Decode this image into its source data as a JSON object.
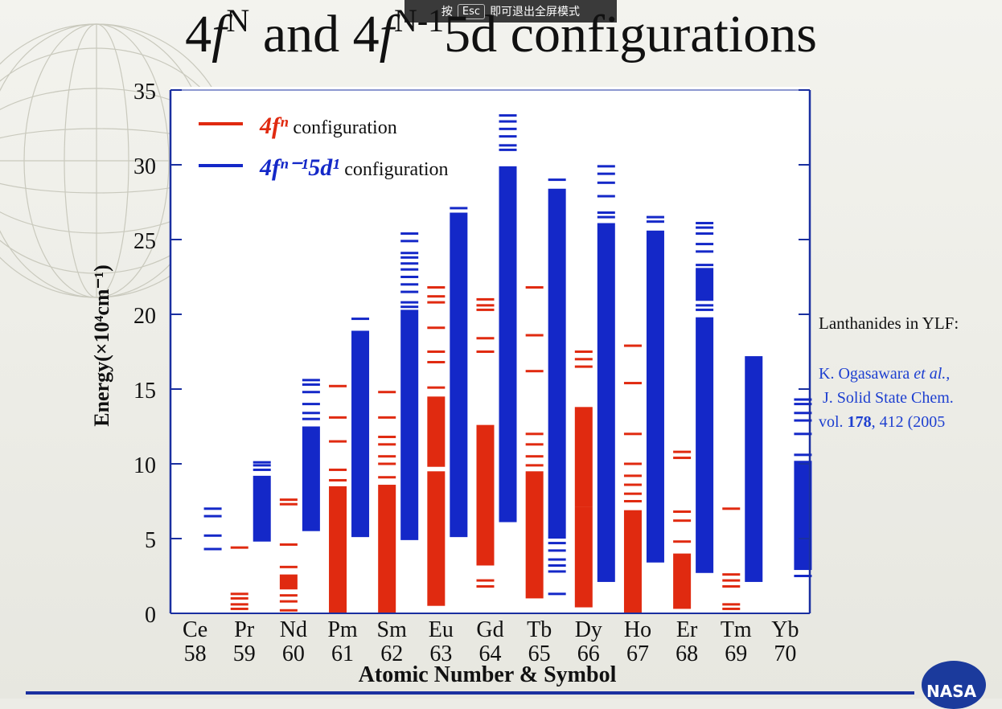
{
  "overlay": {
    "press": "按",
    "key": "Esc",
    "hint": "即可退出全屏模式"
  },
  "title": {
    "part1": "4",
    "f1": "f",
    "sup1": "N",
    "part2": " and 4",
    "f2": "f",
    "sup2": "N-1",
    "part3": "5d configurations"
  },
  "side_note": "Lanthanides in YLF:",
  "reference": {
    "line1": "K. Ogasawara ",
    "line1_em": "et al.,",
    "line2": "J. Solid State Chem.",
    "line3_a": "vol. ",
    "line3_bold": "178",
    "line3_b": ", 412 (2005"
  },
  "colors": {
    "fn": "#e02a10",
    "fd": "#1428c8",
    "axis": "#1a2fa0"
  },
  "chart_data": {
    "type": "bar",
    "ylabel": "Energy(×10⁴cm⁻¹)",
    "xlabel": "Atomic Number & Symbol",
    "ylim": [
      0,
      35
    ],
    "yticks": [
      0,
      5,
      10,
      15,
      20,
      25,
      30,
      35
    ],
    "legend": [
      {
        "label": "4fⁿ",
        "text": " configuration",
        "color": "#e02a10"
      },
      {
        "label": "4fⁿ⁻¹5d¹",
        "text": " configuration",
        "color": "#1428c8"
      }
    ],
    "elements": [
      {
        "symbol": "Ce",
        "z": "58",
        "fn_bands": [],
        "fn_lines": [],
        "fd_bands": [],
        "fd_lines": [
          4.3,
          5.2,
          6.5,
          7.0
        ]
      },
      {
        "symbol": "Pr",
        "z": "59",
        "fn_bands": [],
        "fn_lines": [
          0.3,
          0.6,
          1.0,
          1.3,
          4.4
        ],
        "fd_bands": [
          [
            4.8,
            9.2
          ]
        ],
        "fd_lines": [
          9.6,
          9.9,
          10.1
        ]
      },
      {
        "symbol": "Nd",
        "z": "60",
        "fn_bands": [
          [
            1.6,
            2.6
          ]
        ],
        "fn_lines": [
          0.2,
          0.8,
          1.2,
          3.1,
          4.6,
          7.3,
          7.6
        ],
        "fd_bands": [
          [
            5.5,
            12.5
          ]
        ],
        "fd_lines": [
          13.0,
          13.4,
          14.0,
          14.8,
          15.3,
          15.6
        ]
      },
      {
        "symbol": "Pm",
        "z": "61",
        "fn_bands": [
          [
            0,
            8.5
          ]
        ],
        "fn_lines": [
          8.9,
          9.6,
          11.5,
          13.1,
          15.2
        ],
        "fd_bands": [
          [
            5.1,
            18.9
          ]
        ],
        "fd_lines": [
          19.7
        ]
      },
      {
        "symbol": "Sm",
        "z": "62",
        "fn_bands": [
          [
            0,
            8.6
          ]
        ],
        "fn_lines": [
          9.1,
          10.0,
          10.5,
          11.3,
          11.8,
          13.1,
          14.8
        ],
        "fd_bands": [
          [
            4.9,
            20.3
          ]
        ],
        "fd_lines": [
          20.5,
          20.8,
          21.5,
          22.0,
          22.5,
          23.0,
          23.4,
          23.8,
          24.1,
          24.9,
          25.4
        ]
      },
      {
        "symbol": "Eu",
        "z": "63",
        "fn_bands": [
          [
            0.5,
            9.5
          ],
          [
            9.8,
            14.5
          ]
        ],
        "fn_lines": [
          15.1,
          16.8,
          17.5,
          19.1,
          20.8,
          21.2,
          21.8
        ],
        "fd_bands": [
          [
            5.1,
            26.8
          ]
        ],
        "fd_lines": [
          27.1
        ]
      },
      {
        "symbol": "Gd",
        "z": "64",
        "fn_bands": [
          [
            3.2,
            12.6
          ]
        ],
        "fn_lines": [
          1.8,
          2.2,
          17.5,
          18.4,
          20.3,
          20.6,
          21.0
        ],
        "fd_bands": [
          [
            6.1,
            29.9
          ]
        ],
        "fd_lines": [
          31.0,
          31.3,
          31.9,
          32.4,
          32.9,
          33.3
        ]
      },
      {
        "symbol": "Tb",
        "z": "65",
        "fn_bands": [
          [
            1.0,
            9.5
          ]
        ],
        "fn_lines": [
          9.9,
          10.5,
          11.3,
          12.0,
          16.2,
          18.6,
          21.8
        ],
        "fd_bands": [
          [
            5.0,
            28.4
          ]
        ],
        "fd_lines": [
          1.3,
          2.8,
          3.2,
          3.6,
          4.2,
          4.7,
          29.0
        ]
      },
      {
        "symbol": "Dy",
        "z": "66",
        "fn_bands": [
          [
            0.4,
            7.1
          ],
          [
            7.1,
            13.8
          ]
        ],
        "fn_lines": [
          16.5,
          17.0,
          17.5
        ],
        "fd_bands": [
          [
            2.1,
            26.1
          ]
        ],
        "fd_lines": [
          26.5,
          26.8,
          27.9,
          28.8,
          29.4,
          29.9
        ]
      },
      {
        "symbol": "Ho",
        "z": "67",
        "fn_bands": [
          [
            0,
            6.9
          ]
        ],
        "fn_lines": [
          7.5,
          8.0,
          8.6,
          9.2,
          10.0,
          12.0,
          15.4,
          17.9
        ],
        "fd_bands": [
          [
            3.4,
            25.6
          ]
        ],
        "fd_lines": [
          26.2,
          26.5
        ]
      },
      {
        "symbol": "Er",
        "z": "68",
        "fn_bands": [
          [
            0.3,
            4.0
          ]
        ],
        "fn_lines": [
          4.8,
          6.2,
          6.8,
          10.4,
          10.8
        ],
        "fd_bands": [
          [
            2.7,
            19.8
          ],
          [
            20.9,
            23.1
          ]
        ],
        "fd_lines": [
          20.3,
          20.6,
          23.3,
          24.2,
          24.7,
          25.4,
          25.8,
          26.1
        ]
      },
      {
        "symbol": "Tm",
        "z": "69",
        "fn_bands": [],
        "fn_lines": [
          0.3,
          0.6,
          1.8,
          2.2,
          2.6,
          7.0
        ],
        "fd_bands": [
          [
            2.1,
            17.2
          ]
        ],
        "fd_lines": []
      },
      {
        "symbol": "Yb",
        "z": "70",
        "fn_bands": [],
        "fn_lines": [],
        "fd_bands": [
          [
            2.9,
            10.2
          ]
        ],
        "fd_lines": [
          2.5,
          10.6,
          12.0,
          12.9,
          13.4,
          14.0,
          14.3
        ]
      }
    ]
  }
}
